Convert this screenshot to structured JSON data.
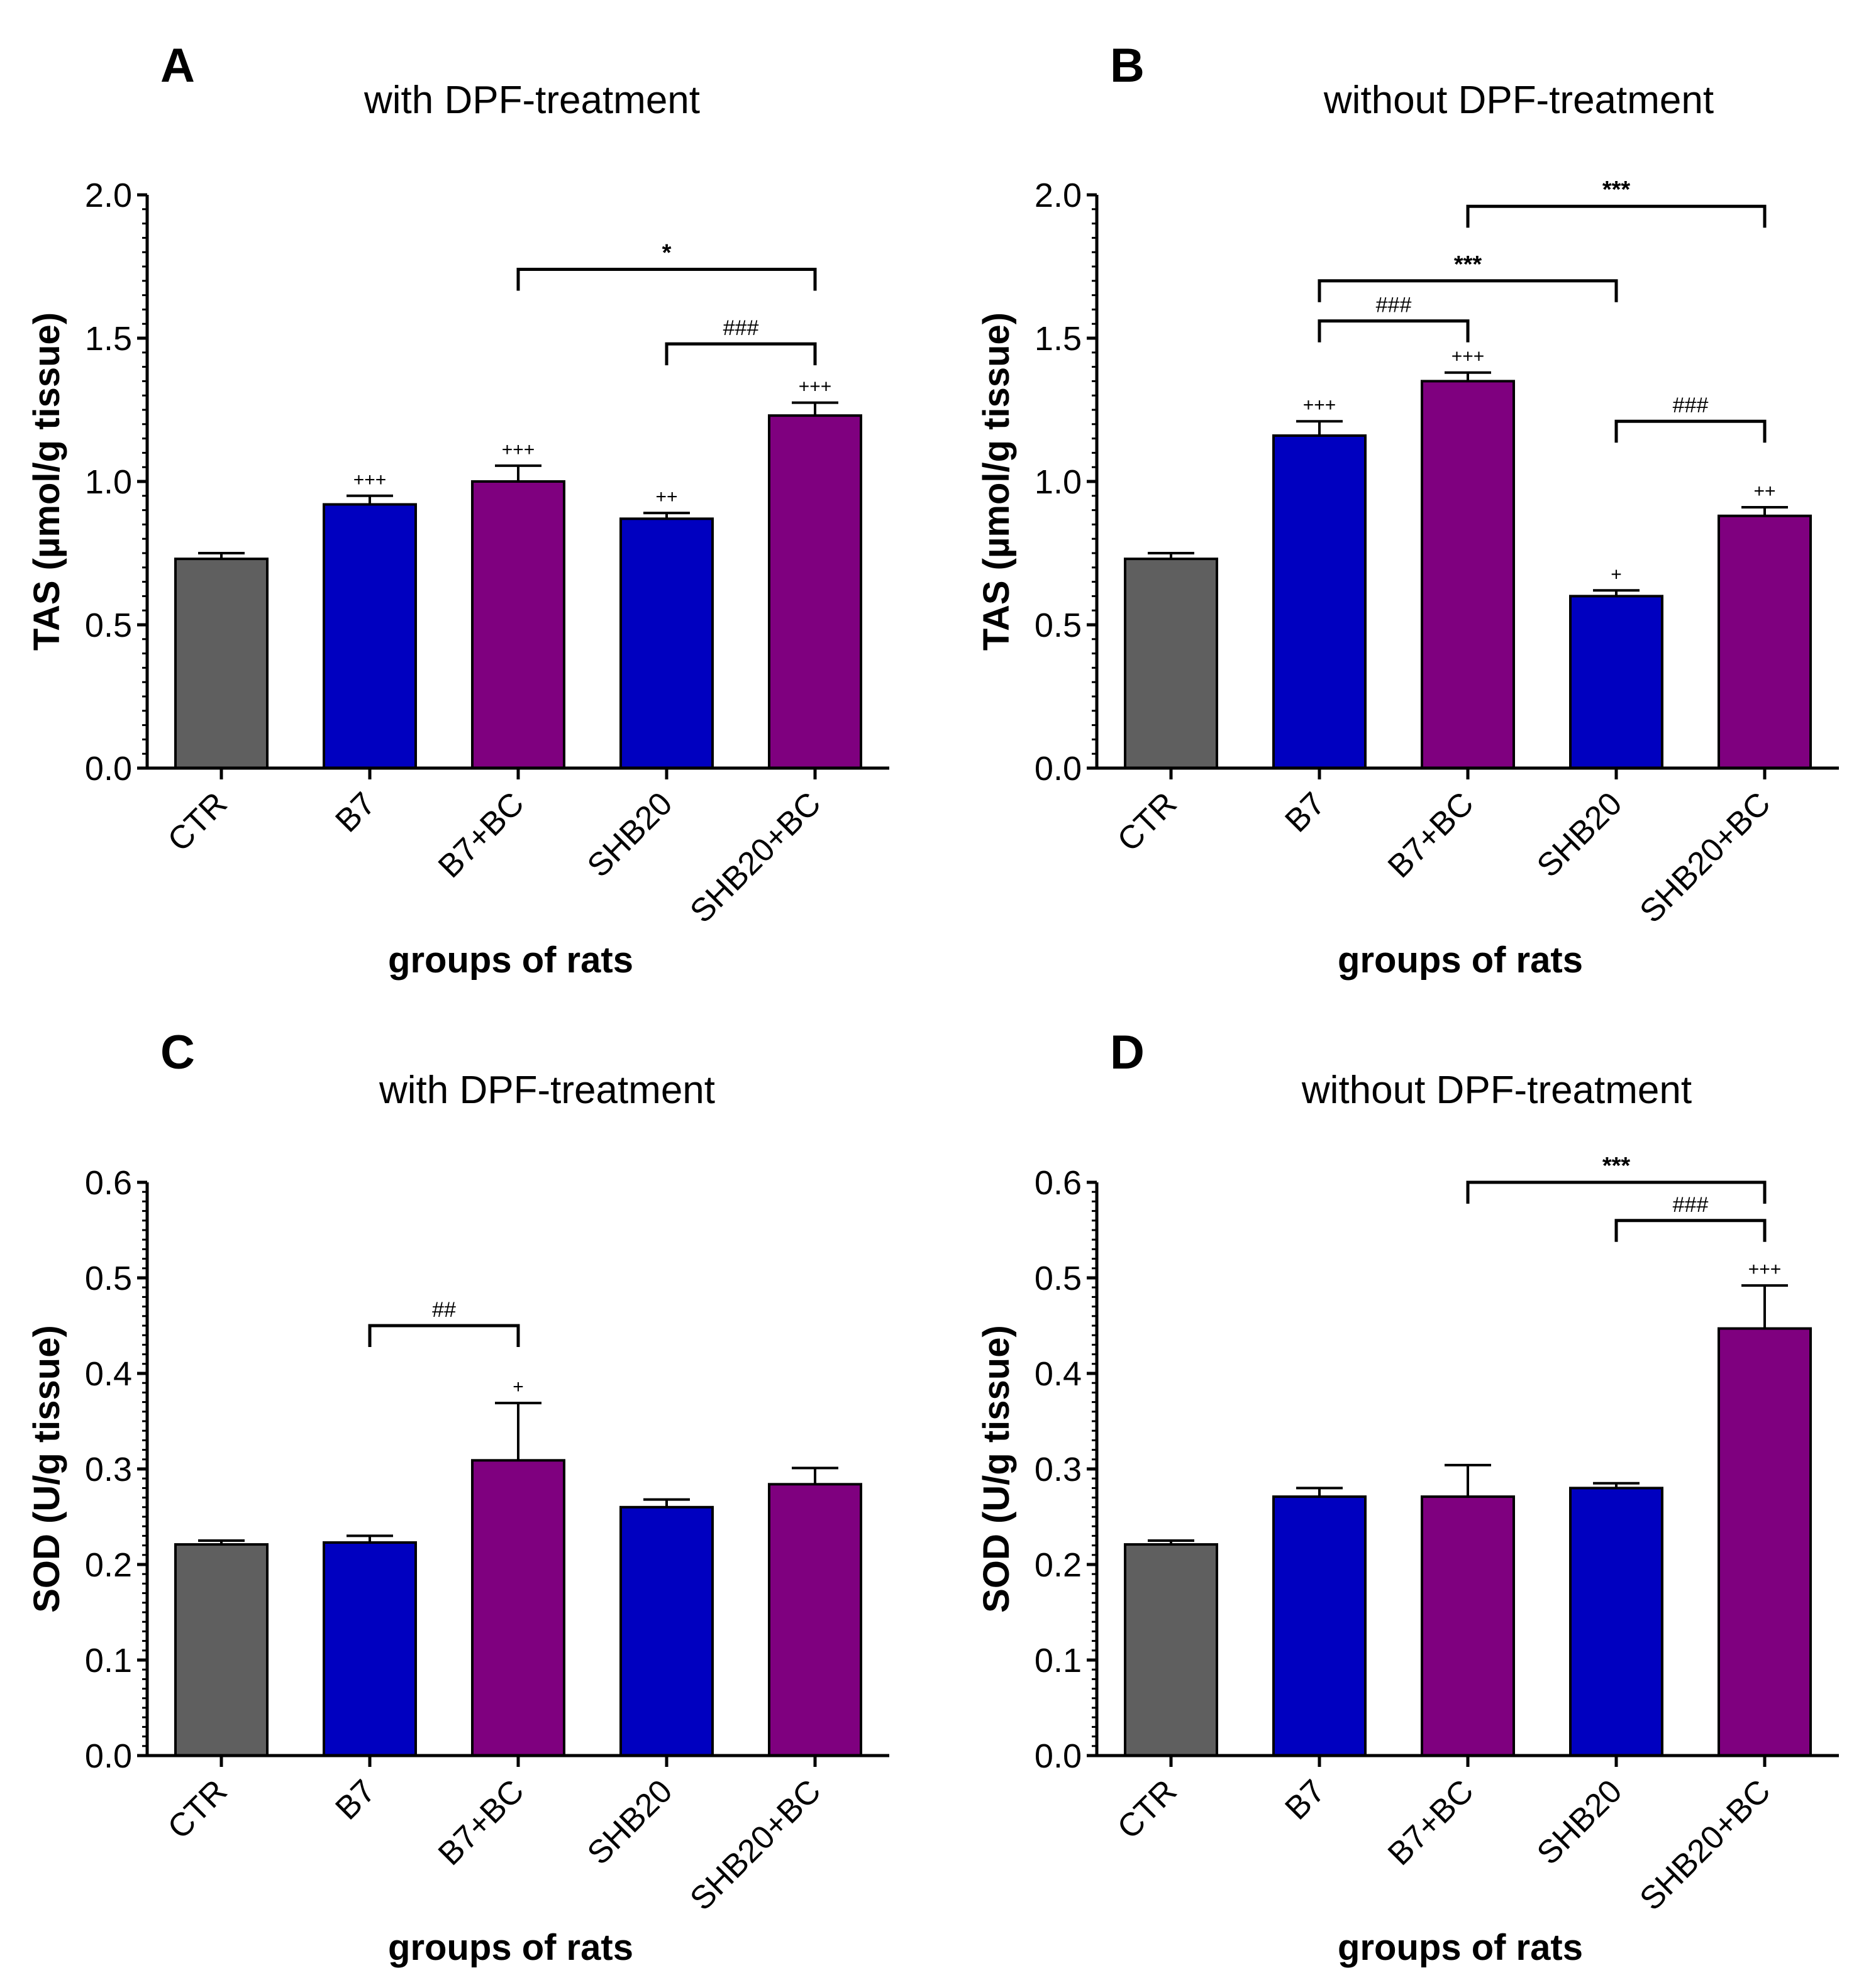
{
  "colors": {
    "ctr": "#5f5f5f",
    "blue": "#0000c0",
    "purple": "#7f007f",
    "axis": "#000000"
  },
  "chart_data": [
    {
      "panel": "A",
      "type": "bar",
      "title": "with DPF-treatment",
      "xlabel": "groups of rats",
      "ylabel": "TAS (µmol/g tissue)",
      "ylim": [
        0,
        2.0
      ],
      "ytick_step": 0.5,
      "ytick_labels": [
        "0.0",
        "0.5",
        "1.0",
        "1.5",
        "2.0"
      ],
      "categories": [
        "CTR",
        "B7",
        "B7+BC",
        "SHB20",
        "SHB20+BC"
      ],
      "bar_colors": [
        "ctr",
        "blue",
        "purple",
        "blue",
        "purple"
      ],
      "values": [
        0.73,
        0.92,
        1.0,
        0.87,
        1.23
      ],
      "errors": [
        0.02,
        0.03,
        0.055,
        0.02,
        0.045
      ],
      "markers": [
        "",
        "+++",
        "+++",
        "++",
        "+++"
      ],
      "brackets": [
        {
          "from": 3,
          "to": 4,
          "label": "###",
          "level": 1.48,
          "kind": "hash"
        },
        {
          "from": 2,
          "to": 4,
          "label": "*",
          "level": 1.74,
          "kind": "star"
        }
      ]
    },
    {
      "panel": "B",
      "type": "bar",
      "title": "without DPF-treatment",
      "xlabel": "groups of rats",
      "ylabel": "TAS (µmol/g tissue)",
      "ylim": [
        0,
        2.0
      ],
      "ytick_step": 0.5,
      "ytick_labels": [
        "0.0",
        "0.5",
        "1.0",
        "1.5",
        "2.0"
      ],
      "categories": [
        "CTR",
        "B7",
        "B7+BC",
        "SHB20",
        "SHB20+BC"
      ],
      "bar_colors": [
        "ctr",
        "blue",
        "purple",
        "blue",
        "purple"
      ],
      "values": [
        0.73,
        1.16,
        1.35,
        0.6,
        0.88
      ],
      "errors": [
        0.02,
        0.05,
        0.03,
        0.02,
        0.03
      ],
      "markers": [
        "",
        "+++",
        "+++",
        "+",
        "++"
      ],
      "brackets": [
        {
          "from": 3,
          "to": 4,
          "label": "###",
          "level": 1.21,
          "kind": "hash"
        },
        {
          "from": 1,
          "to": 2,
          "label": "###",
          "level": 1.56,
          "kind": "hash"
        },
        {
          "from": 1,
          "to": 3,
          "label": "***",
          "level": 1.7,
          "kind": "star"
        },
        {
          "from": 2,
          "to": 4,
          "label": "***",
          "level": 1.96,
          "kind": "star"
        }
      ]
    },
    {
      "panel": "C",
      "type": "bar",
      "title": "with DPF-treatment",
      "xlabel": "groups of rats",
      "ylabel": "SOD (U/g tissue)",
      "ylim": [
        0,
        0.6
      ],
      "ytick_step": 0.1,
      "ytick_labels": [
        "0.0",
        "0.1",
        "0.2",
        "0.3",
        "0.4",
        "0.5",
        "0.6"
      ],
      "categories": [
        "CTR",
        "B7",
        "B7+BC",
        "SHB20",
        "SHB20+BC"
      ],
      "bar_colors": [
        "ctr",
        "blue",
        "purple",
        "blue",
        "purple"
      ],
      "values": [
        0.221,
        0.223,
        0.309,
        0.26,
        0.284
      ],
      "errors": [
        0.004,
        0.007,
        0.06,
        0.008,
        0.017
      ],
      "markers": [
        "",
        "",
        "+",
        "",
        ""
      ],
      "brackets": [
        {
          "from": 1,
          "to": 2,
          "label": "##",
          "level": 0.45,
          "kind": "hash"
        }
      ]
    },
    {
      "panel": "D",
      "type": "bar",
      "title": "without DPF-treatment",
      "xlabel": "groups of rats",
      "ylabel": "SOD (U/g tissue)",
      "ylim": [
        0,
        0.6
      ],
      "ytick_step": 0.1,
      "ytick_labels": [
        "0.0",
        "0.1",
        "0.2",
        "0.3",
        "0.4",
        "0.5",
        "0.6"
      ],
      "categories": [
        "CTR",
        "B7",
        "B7+BC",
        "SHB20",
        "SHB20+BC"
      ],
      "bar_colors": [
        "ctr",
        "blue",
        "purple",
        "blue",
        "purple"
      ],
      "values": [
        0.221,
        0.271,
        0.271,
        0.28,
        0.447
      ],
      "errors": [
        0.004,
        0.009,
        0.033,
        0.005,
        0.045
      ],
      "markers": [
        "",
        "",
        "",
        "",
        "+++"
      ],
      "brackets": [
        {
          "from": 3,
          "to": 4,
          "label": "###",
          "level": 0.56,
          "kind": "hash"
        },
        {
          "from": 2,
          "to": 4,
          "label": "***",
          "level": 0.6,
          "kind": "star"
        }
      ]
    }
  ]
}
